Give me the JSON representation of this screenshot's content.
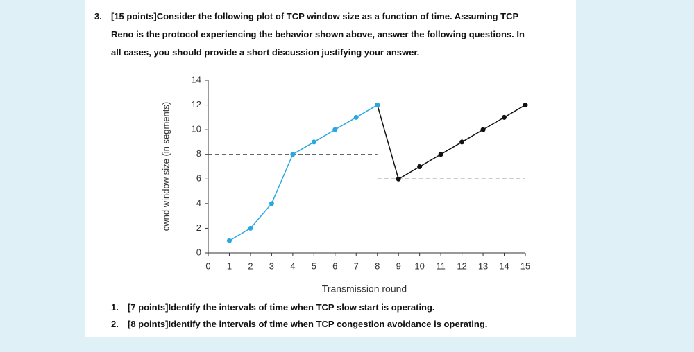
{
  "question": {
    "number": "3.",
    "lines": [
      "[15 points]Consider the following plot of TCP window size as a function of time. Assuming TCP",
      "Reno is the protocol experiencing the behavior shown above, answer the following questions. In",
      "all cases, you should provide a short discussion justifying your answer."
    ]
  },
  "items": [
    {
      "number": "1.",
      "text": "[7 points]Identify the intervals of time when TCP slow start is operating."
    },
    {
      "number": "2.",
      "text": "[8 points]Identify the intervals of time when TCP congestion avoidance is operating."
    }
  ],
  "chart_data": {
    "type": "line",
    "xlabel": "Transmission round",
    "ylabel": "cwnd window size (in segments)",
    "xlim": [
      0,
      15
    ],
    "ylim": [
      0,
      14
    ],
    "xticks": [
      0,
      1,
      2,
      3,
      4,
      5,
      6,
      7,
      8,
      9,
      10,
      11,
      12,
      13,
      14,
      15
    ],
    "yticks": [
      0,
      2,
      4,
      6,
      8,
      10,
      12,
      14
    ],
    "series": [
      {
        "color": "#29a8e0",
        "x": [
          1,
          2,
          3,
          4,
          5,
          6,
          7,
          8
        ],
        "values": [
          1,
          2,
          4,
          8,
          9,
          10,
          11,
          12
        ]
      },
      {
        "color": "#111111",
        "x": [
          8,
          9,
          10,
          11,
          12,
          13,
          14,
          15
        ],
        "values": [
          12,
          6,
          7,
          8,
          9,
          10,
          11,
          12
        ]
      }
    ],
    "reference_lines": [
      {
        "y": 8,
        "x": [
          0,
          8
        ]
      },
      {
        "y": 6,
        "x": [
          8,
          15
        ]
      }
    ]
  }
}
